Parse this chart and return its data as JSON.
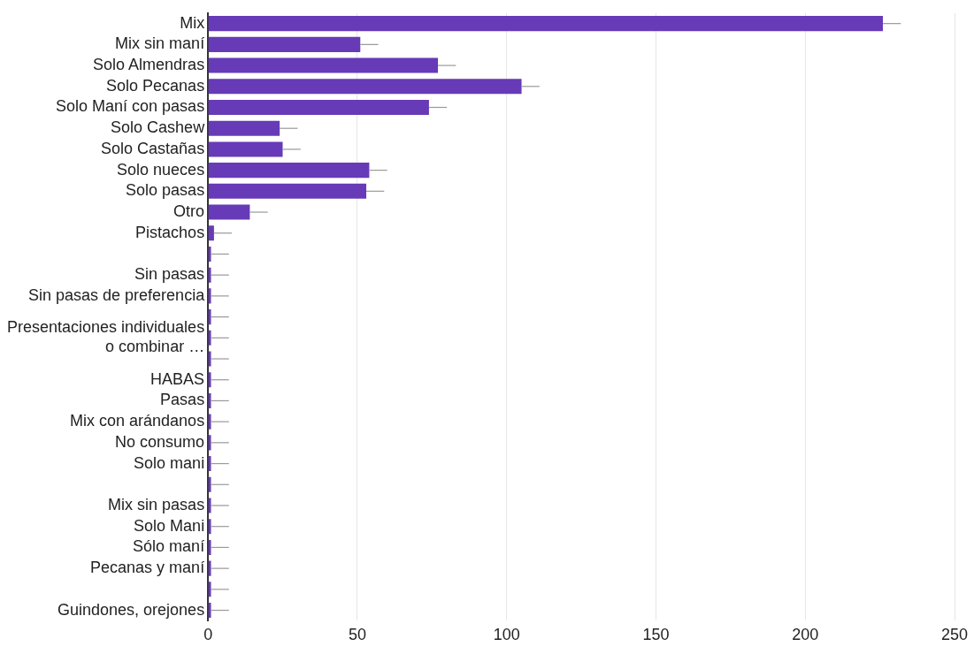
{
  "chart_data": {
    "type": "bar",
    "orientation": "horizontal",
    "categories": [
      "Mix",
      "Mix sin maní",
      "Solo Almendras",
      "Solo Pecanas",
      "Solo Maní con pasas",
      "Solo Cashew",
      "Solo Castañas",
      "Solo nueces",
      "Solo pasas",
      "Otro",
      "Pistachos",
      null,
      "Sin pasas",
      "Sin pasas de preferencia",
      null,
      "Presentaciones individuales\no combinar …",
      null,
      "HABAS",
      "Pasas",
      "Mix con arándanos",
      "No consumo",
      "Solo mani",
      null,
      "Mix sin pasas",
      "Solo Mani",
      "Sólo maní",
      "Pecanas y maní",
      null,
      "Guindones, orejones"
    ],
    "values": [
      226,
      51,
      77,
      105,
      74,
      24,
      25,
      54,
      53,
      14,
      2,
      1,
      1,
      1,
      1,
      1,
      1,
      1,
      1,
      1,
      1,
      1,
      1,
      1,
      1,
      1,
      1,
      1,
      1
    ],
    "errors": [
      [
        226,
        232
      ],
      [
        51,
        57
      ],
      [
        77,
        83
      ],
      [
        105,
        111
      ],
      [
        74,
        80
      ],
      [
        24,
        30
      ],
      [
        25,
        31
      ],
      [
        54,
        60
      ],
      [
        53,
        59
      ],
      [
        14,
        20
      ],
      [
        2,
        8
      ],
      [
        1,
        7
      ],
      [
        1,
        7
      ],
      [
        1,
        7
      ],
      [
        1,
        7
      ],
      [
        1,
        7
      ],
      [
        1,
        7
      ],
      [
        1,
        7
      ],
      [
        1,
        7
      ],
      [
        1,
        7
      ],
      [
        1,
        7
      ],
      [
        1,
        7
      ],
      [
        1,
        7
      ],
      [
        1,
        7
      ],
      [
        1,
        7
      ],
      [
        1,
        7
      ],
      [
        1,
        7
      ],
      [
        1,
        7
      ],
      [
        1,
        7
      ]
    ],
    "color": "#673ab7",
    "xlim": [
      0,
      250
    ],
    "xticks": [
      0,
      50,
      100,
      150,
      200,
      250
    ],
    "grid": "x",
    "legend": false
  }
}
